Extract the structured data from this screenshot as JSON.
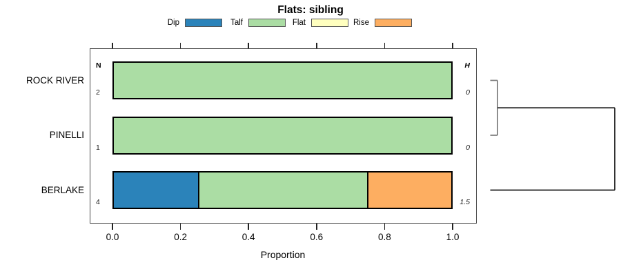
{
  "title": "Flats: sibling",
  "legend": {
    "items": [
      {
        "label": "Dip",
        "color": "#2B83BA"
      },
      {
        "label": "Talf",
        "color": "#ABDDA4"
      },
      {
        "label": "Flat",
        "color": "#FFFFBF"
      },
      {
        "label": "Rise",
        "color": "#FDAE61"
      }
    ]
  },
  "columns": {
    "n_header": "N",
    "h_header": "H"
  },
  "axis": {
    "label": "Proportion",
    "ticks": [
      "0.0",
      "0.2",
      "0.4",
      "0.6",
      "0.8",
      "1.0"
    ]
  },
  "chart_data": {
    "type": "bar",
    "orientation": "horizontal",
    "stacked": true,
    "title": "Flats: sibling",
    "xlabel": "Proportion",
    "xlim": [
      0,
      1
    ],
    "grid": false,
    "legend_position": "top",
    "categories": [
      "ROCK RIVER",
      "PINELLI",
      "BERLAKE"
    ],
    "n_values": [
      "2",
      "1",
      "4"
    ],
    "h_values": [
      "0",
      "0",
      "1.5"
    ],
    "series": [
      {
        "name": "Dip",
        "color": "#2B83BA",
        "values": [
          0,
          0,
          0.25
        ]
      },
      {
        "name": "Talf",
        "color": "#ABDDA4",
        "values": [
          1,
          1,
          0.5
        ]
      },
      {
        "name": "Flat",
        "color": "#FFFFBF",
        "values": [
          0,
          0,
          0
        ]
      },
      {
        "name": "Rise",
        "color": "#FDAE61",
        "values": [
          0,
          0,
          0.25
        ]
      }
    ],
    "dendrogram": {
      "merges": [
        {
          "children": [
            0,
            1
          ],
          "height": 0,
          "color": "#7a7a7a"
        },
        {
          "children": [
            "m0",
            2
          ],
          "height": 1.5,
          "color": "#1a1a1a"
        }
      ]
    }
  }
}
